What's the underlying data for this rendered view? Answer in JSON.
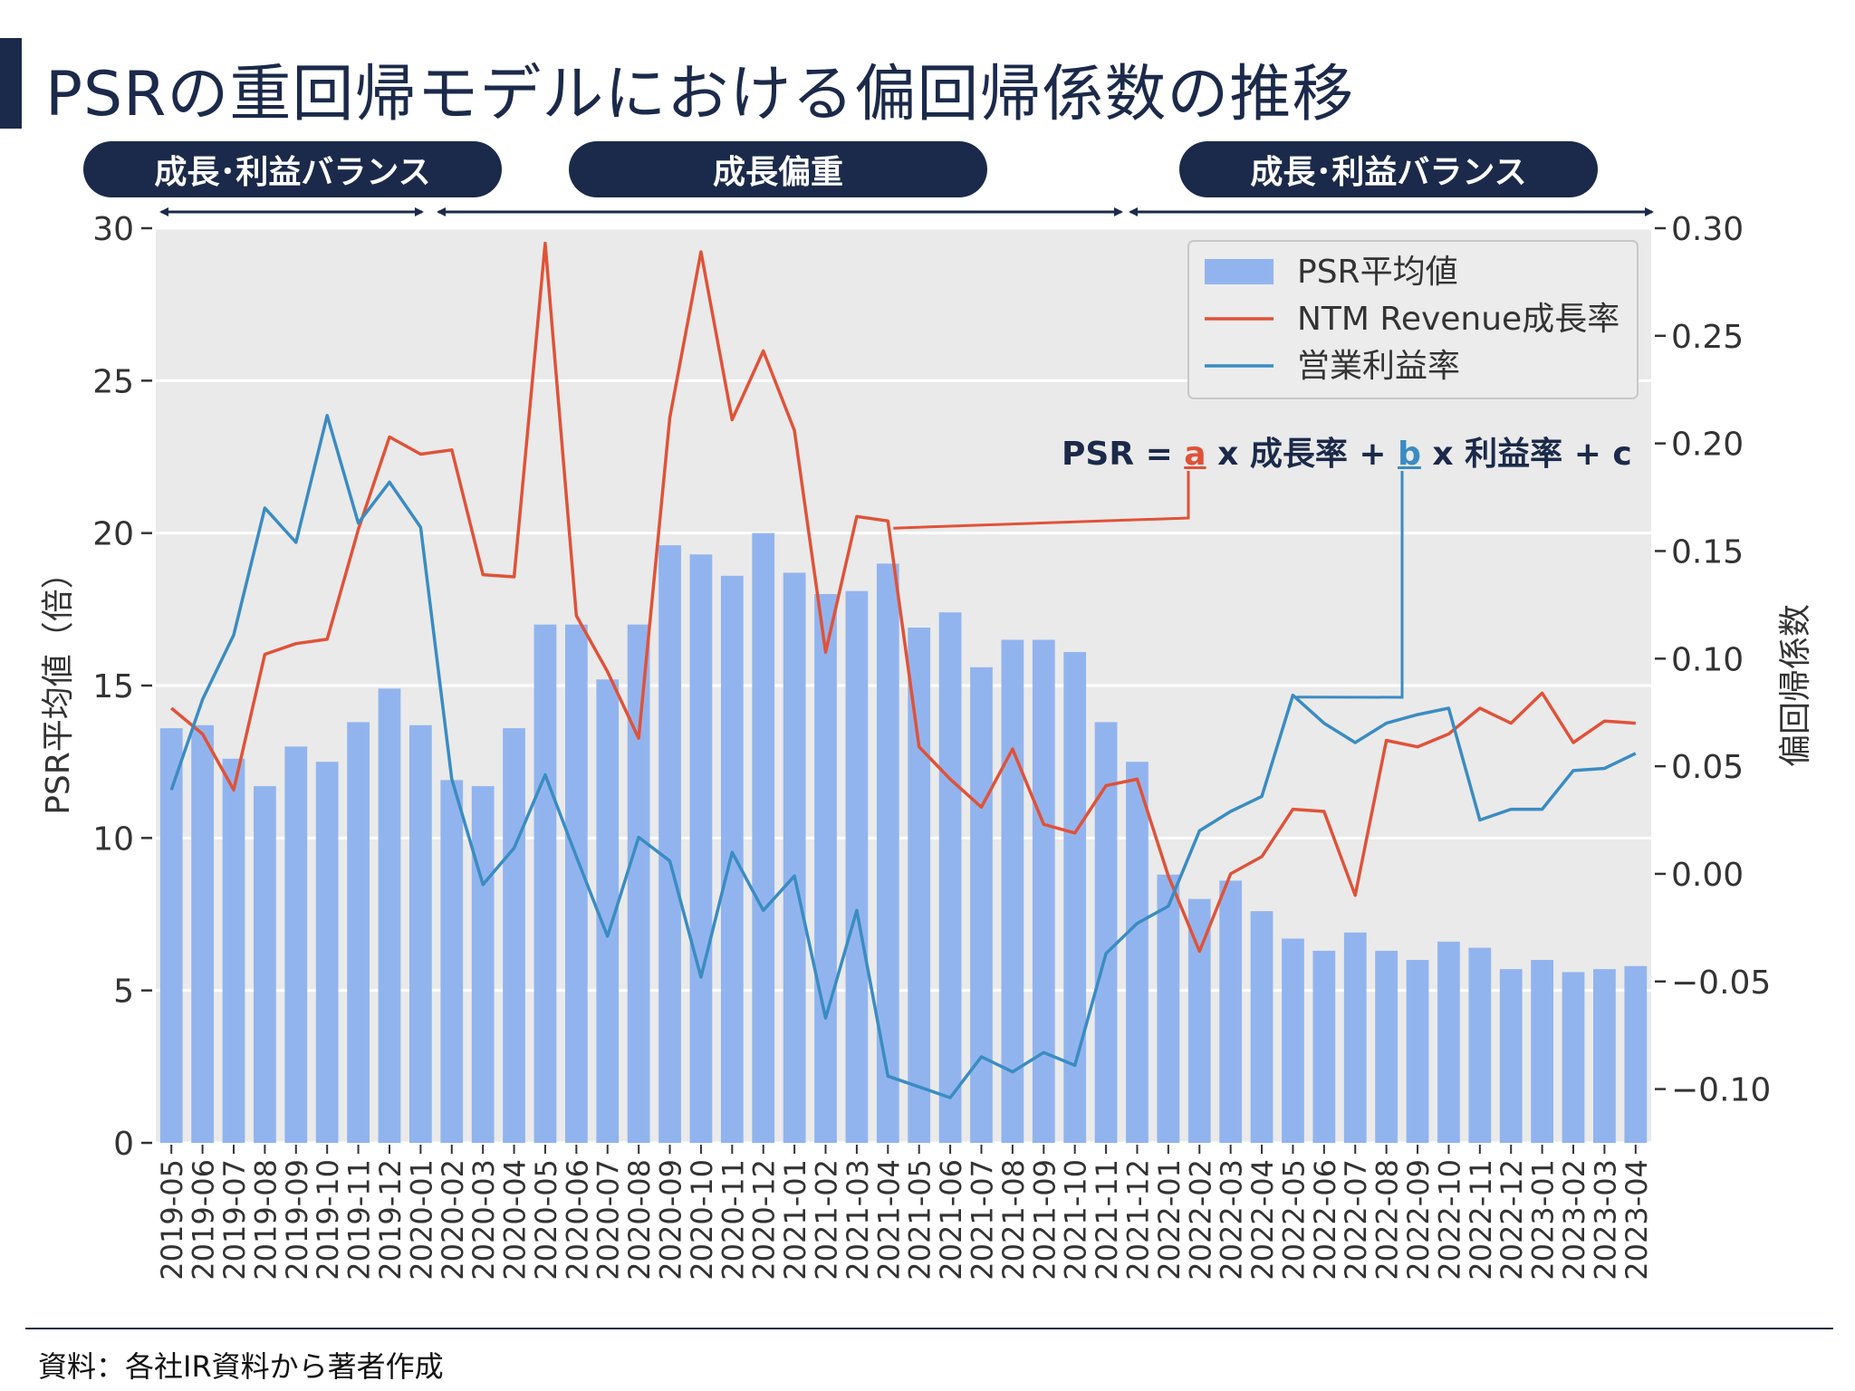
{
  "title": "PSRの重回帰モデルにおける偏回帰係数の推移",
  "phases": [
    "成長･利益バランス",
    "成長偏重",
    "成長･利益バランス"
  ],
  "equation": {
    "prefix": "PSR = ",
    "a": "a",
    "mid1": " x 成長率 + ",
    "b": "b",
    "mid2": " x 利益率 + c"
  },
  "source": "資料：各社IR資料から著者作成",
  "colors": {
    "bar": "#92b4ee",
    "growth_line": "#e05238",
    "margin_line": "#3a8cc2",
    "navy": "#1b2a4a",
    "plot_bg": "#eaeaea"
  },
  "chart_data": {
    "type": "bar+line",
    "categories": [
      "2019-05",
      "2019-06",
      "2019-07",
      "2019-08",
      "2019-09",
      "2019-10",
      "2019-11",
      "2019-12",
      "2020-01",
      "2020-02",
      "2020-03",
      "2020-04",
      "2020-05",
      "2020-06",
      "2020-07",
      "2020-08",
      "2020-09",
      "2020-10",
      "2020-11",
      "2020-12",
      "2021-01",
      "2021-02",
      "2021-03",
      "2021-04",
      "2021-05",
      "2021-06",
      "2021-07",
      "2021-08",
      "2021-09",
      "2021-10",
      "2021-11",
      "2021-12",
      "2022-01",
      "2022-02",
      "2022-03",
      "2022-04",
      "2022-05",
      "2022-06",
      "2022-07",
      "2022-08",
      "2022-09",
      "2022-10",
      "2022-11",
      "2022-12",
      "2023-01",
      "2023-02",
      "2023-03",
      "2023-04"
    ],
    "bars": {
      "name": "PSR平均値",
      "axis": "left",
      "values": [
        13.6,
        13.7,
        12.6,
        11.7,
        13.0,
        12.5,
        13.8,
        14.9,
        13.7,
        11.9,
        11.7,
        13.6,
        17.0,
        17.0,
        15.2,
        17.0,
        19.6,
        19.3,
        18.6,
        20.0,
        18.7,
        18.0,
        18.1,
        19.0,
        16.9,
        17.4,
        15.6,
        16.5,
        16.5,
        16.1,
        13.8,
        12.5,
        8.8,
        8.0,
        8.6,
        7.6,
        6.7,
        6.3,
        6.9,
        6.3,
        6.0,
        6.6,
        6.4,
        5.7,
        6.0,
        5.6,
        5.7,
        5.8
      ]
    },
    "series": [
      {
        "name": "NTM Revenue成長率",
        "axis": "right",
        "values": [
          0.077,
          0.065,
          0.039,
          0.102,
          0.107,
          0.109,
          0.16,
          0.203,
          0.195,
          0.197,
          0.139,
          0.138,
          0.293,
          0.12,
          0.094,
          0.063,
          0.212,
          0.289,
          0.211,
          0.243,
          0.206,
          0.103,
          0.166,
          0.164,
          0.059,
          0.044,
          0.031,
          0.058,
          0.023,
          0.019,
          0.041,
          0.044,
          -0.001,
          -0.036,
          0.0,
          0.008,
          0.03,
          0.029,
          -0.01,
          0.062,
          0.059,
          0.065,
          0.077,
          0.07,
          0.084,
          0.061,
          0.071,
          0.07
        ]
      },
      {
        "name": "営業利益率",
        "axis": "right",
        "values": [
          0.039,
          0.081,
          0.111,
          0.17,
          0.154,
          0.213,
          0.163,
          0.182,
          0.161,
          0.044,
          -0.005,
          0.012,
          0.046,
          0.008,
          -0.029,
          0.017,
          0.006,
          -0.048,
          0.01,
          -0.017,
          -0.001,
          -0.067,
          -0.017,
          -0.094,
          -0.099,
          -0.104,
          -0.085,
          -0.092,
          -0.083,
          -0.089,
          -0.037,
          -0.023,
          -0.015,
          0.02,
          0.029,
          0.036,
          0.083,
          0.07,
          0.061,
          0.07,
          0.074,
          0.077,
          0.025,
          0.03,
          0.03,
          0.048,
          0.049,
          0.056
        ]
      }
    ],
    "ylabel": "PSR平均値（倍）",
    "ylabel_right": "偏回帰係数",
    "ylim": [
      0,
      30
    ],
    "ylim_right": [
      -0.125,
      0.3
    ],
    "yticks": [
      0,
      5,
      10,
      15,
      20,
      25,
      30
    ],
    "yticks_right": [
      -0.1,
      -0.05,
      0.0,
      0.05,
      0.1,
      0.15,
      0.2,
      0.25,
      0.3
    ],
    "ytick_labels_right": [
      "−0.10",
      "−0.05",
      "0.00",
      "0.05",
      "0.10",
      "0.15",
      "0.20",
      "0.25",
      "0.30"
    ],
    "grid": true,
    "legend_position": "top-right"
  }
}
